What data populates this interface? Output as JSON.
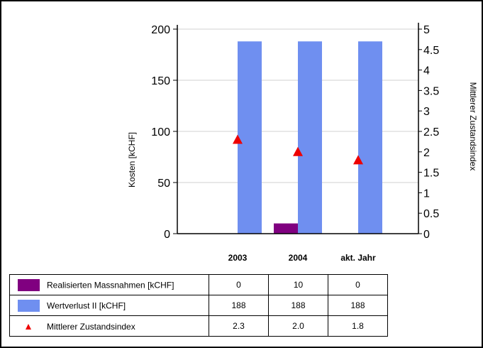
{
  "chart_data": {
    "type": "bar",
    "categories": [
      "2003",
      "2004",
      "akt. Jahr"
    ],
    "series": [
      {
        "name": "Realisierten Massnahmen [kCHF]",
        "kind": "bar",
        "axis": "left",
        "color": "#800080",
        "values": [
          0,
          10,
          0
        ],
        "display": [
          "0",
          "10",
          "0"
        ]
      },
      {
        "name": "Wertverlust II [kCHF]",
        "kind": "bar",
        "axis": "left",
        "color": "#6f8ff0",
        "values": [
          188,
          188,
          188
        ],
        "display": [
          "188",
          "188",
          "188"
        ]
      },
      {
        "name": "Mittlerer Zustandsindex",
        "kind": "marker",
        "marker": "triangle",
        "axis": "right",
        "color": "#ee0000",
        "values": [
          2.3,
          2.0,
          1.8
        ],
        "display": [
          "2.3",
          "2.0",
          "1.8"
        ]
      }
    ],
    "ylabel_left": "Kosten [kCHF]",
    "ylabel_right": "Mittlerer Zustandsindex",
    "ylim_left": [
      0,
      200
    ],
    "ylim_right": [
      0,
      5
    ],
    "yticks_left": [
      "0",
      "50",
      "100",
      "150",
      "200"
    ],
    "yticks_right": [
      "0",
      "0.5",
      "1",
      "1.5",
      "2",
      "2.5",
      "3",
      "3.5",
      "4",
      "4.5",
      "5"
    ],
    "grid": "horizontal"
  }
}
